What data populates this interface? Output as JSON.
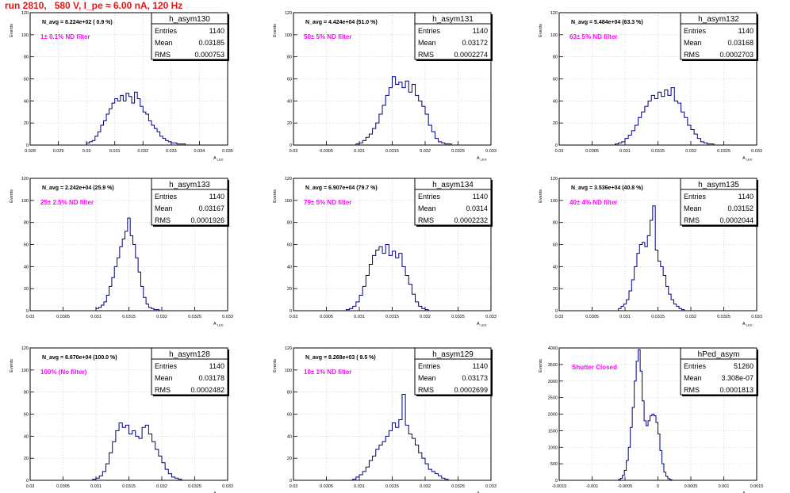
{
  "header": {
    "run_title": "run 2810,   580 V, I_pe ≈ 6.00 nA, 120 Hz"
  },
  "axis_labels": {
    "ylabel": "Events",
    "xlabel": "A",
    "xlabel_sub": "LED"
  },
  "colors": {
    "title_red": "#ee1111",
    "annotation_magenta": "#ff00ff",
    "histogram_line": "#000080",
    "frame": "#000000",
    "grid": "#bfbfbf"
  },
  "stats_labels": {
    "entries": "Entries",
    "mean": "Mean",
    "rms": "RMS"
  },
  "chart_data": [
    {
      "type": "histogram",
      "name": "h_asym130",
      "navg": "N_avg = 8.224e+02 ( 0.9 %)",
      "filter": "1± 0.1% ND filter",
      "stats": {
        "entries": "1140",
        "mean": "0.03185",
        "rms": "0.000753"
      },
      "xlim": [
        0.028,
        0.035
      ],
      "ylim": [
        0,
        120
      ],
      "grid": true,
      "xticks": [
        "0.028",
        "0.029",
        "0.03",
        "0.031",
        "0.032",
        "0.033",
        "0.034",
        "0.035"
      ],
      "yticks": [
        "0",
        "20",
        "40",
        "60",
        "80",
        "100",
        "120"
      ],
      "bins": {
        "start": 0.03,
        "width": 0.0001,
        "counts": [
          2,
          3,
          4,
          8,
          12,
          18,
          22,
          28,
          33,
          38,
          42,
          40,
          45,
          40,
          47,
          44,
          38,
          48,
          42,
          35,
          30,
          28,
          22,
          18,
          15,
          12,
          8,
          6,
          4,
          3,
          2,
          2,
          1,
          1,
          1
        ]
      }
    },
    {
      "type": "histogram",
      "name": "h_asym131",
      "navg": "N_avg = 4.424e+04 (51.0 %)",
      "filter": "50± 5% ND filter",
      "stats": {
        "entries": "1140",
        "mean": "0.03172",
        "rms": "0.0002274"
      },
      "xlim": [
        0.03,
        0.033
      ],
      "ylim": [
        0,
        120
      ],
      "grid": true,
      "xticks": [
        "0.03",
        "0.0305",
        "0.031",
        "0.0315",
        "0.032",
        "0.0325",
        "0.033"
      ],
      "yticks": [
        "0",
        "20",
        "40",
        "60",
        "80",
        "100",
        "120"
      ],
      "bins": {
        "start": 0.03095,
        "width": 5e-05,
        "counts": [
          1,
          2,
          4,
          7,
          10,
          15,
          20,
          28,
          36,
          45,
          52,
          62,
          55,
          57,
          52,
          58,
          48,
          55,
          45,
          40,
          35,
          28,
          18,
          12,
          6,
          3,
          2,
          1,
          1
        ]
      }
    },
    {
      "type": "histogram",
      "name": "h_asym132",
      "navg": "N_avg = 5.484e+04 (63.3 %)",
      "filter": "63± 5% ND filter",
      "stats": {
        "entries": "1140",
        "mean": "0.03168",
        "rms": "0.0002703"
      },
      "xlim": [
        0.03,
        0.033
      ],
      "ylim": [
        0,
        120
      ],
      "grid": true,
      "xticks": [
        "0.03",
        "0.0305",
        "0.031",
        "0.0315",
        "0.032",
        "0.0325",
        "0.033"
      ],
      "yticks": [
        "0",
        "20",
        "40",
        "60",
        "80",
        "100",
        "120"
      ],
      "bins": {
        "start": 0.03085,
        "width": 5e-05,
        "counts": [
          1,
          2,
          3,
          6,
          9,
          13,
          18,
          25,
          30,
          35,
          40,
          45,
          42,
          48,
          44,
          50,
          45,
          52,
          40,
          38,
          30,
          25,
          18,
          14,
          10,
          6,
          3,
          2,
          1,
          1
        ]
      }
    },
    {
      "type": "histogram",
      "name": "h_asym133",
      "navg": "N_avg = 2.242e+04 (25.9 %)",
      "filter": "25± 2.5% ND filter",
      "stats": {
        "entries": "1140",
        "mean": "0.03167",
        "rms": "0.0001926"
      },
      "xlim": [
        0.03,
        0.033
      ],
      "ylim": [
        0,
        120
      ],
      "grid": true,
      "xticks": [
        "0.03",
        "0.0305",
        "0.031",
        "0.0315",
        "0.032",
        "0.0325",
        "0.033"
      ],
      "yticks": [
        "0",
        "20",
        "40",
        "60",
        "80",
        "100",
        "120"
      ],
      "bins": {
        "start": 0.031,
        "width": 4e-05,
        "counts": [
          2,
          3,
          5,
          8,
          14,
          22,
          30,
          40,
          48,
          58,
          65,
          72,
          84,
          68,
          60,
          48,
          35,
          22,
          12,
          6,
          3,
          2,
          1,
          1
        ]
      }
    },
    {
      "type": "histogram",
      "name": "h_asym134",
      "navg": "N_avg = 6.907e+04 (79.7 %)",
      "filter": "79± 5% ND filter",
      "stats": {
        "entries": "1140",
        "mean": "0.0314",
        "rms": "0.0002232"
      },
      "xlim": [
        0.03,
        0.033
      ],
      "ylim": [
        0,
        120
      ],
      "grid": true,
      "xticks": [
        "0.03",
        "0.0305",
        "0.031",
        "0.0315",
        "0.032",
        "0.0325",
        "0.033"
      ],
      "yticks": [
        "0",
        "20",
        "40",
        "60",
        "80",
        "100",
        "120"
      ],
      "bins": {
        "start": 0.0308,
        "width": 5e-05,
        "counts": [
          1,
          2,
          4,
          8,
          14,
          22,
          32,
          42,
          50,
          55,
          58,
          52,
          60,
          50,
          54,
          48,
          52,
          40,
          32,
          24,
          15,
          8,
          4,
          2,
          1
        ]
      }
    },
    {
      "type": "histogram",
      "name": "h_asym135",
      "navg": "N_avg = 3.536e+04 (40.8 %)",
      "filter": "40± 4% ND filter",
      "stats": {
        "entries": "1140",
        "mean": "0.03152",
        "rms": "0.0002044"
      },
      "xlim": [
        0.03,
        0.033
      ],
      "ylim": [
        0,
        120
      ],
      "grid": true,
      "xticks": [
        "0.03",
        "0.0305",
        "0.031",
        "0.0315",
        "0.032",
        "0.0325",
        "0.033"
      ],
      "yticks": [
        "0",
        "20",
        "40",
        "60",
        "80",
        "100",
        "120"
      ],
      "bins": {
        "start": 0.0309,
        "width": 4e-05,
        "counts": [
          2,
          4,
          6,
          10,
          18,
          28,
          40,
          52,
          60,
          62,
          58,
          68,
          82,
          95,
          55,
          45,
          40,
          32,
          22,
          15,
          10,
          6,
          4,
          2,
          1
        ]
      }
    },
    {
      "type": "histogram",
      "name": "h_asym128",
      "navg": "N_avg = 8.670e+04 (100.0 %)",
      "filter": "100% (No filter)",
      "stats": {
        "entries": "1140",
        "mean": "0.03178",
        "rms": "0.0002482"
      },
      "xlim": [
        0.03,
        0.033
      ],
      "ylim": [
        0,
        120
      ],
      "grid": true,
      "xticks": [
        "0.03",
        "0.0305",
        "0.031",
        "0.0315",
        "0.032",
        "0.0325",
        "0.033"
      ],
      "yticks": [
        "0",
        "20",
        "40",
        "60",
        "80",
        "100",
        "120"
      ],
      "bins": {
        "start": 0.03095,
        "width": 5e-05,
        "counts": [
          1,
          2,
          4,
          8,
          15,
          25,
          35,
          45,
          52,
          48,
          50,
          42,
          45,
          40,
          38,
          48,
          50,
          42,
          35,
          28,
          22,
          16,
          10,
          6,
          3,
          2,
          1
        ]
      }
    },
    {
      "type": "histogram",
      "name": "h_asym129",
      "navg": "N_avg = 8.268e+03 ( 9.5 %)",
      "filter": "10± 1% ND filter",
      "stats": {
        "entries": "1140",
        "mean": "0.03173",
        "rms": "0.0002699"
      },
      "xlim": [
        0.03,
        0.033
      ],
      "ylim": [
        0,
        120
      ],
      "grid": true,
      "xticks": [
        "0.03",
        "0.0305",
        "0.031",
        "0.0315",
        "0.032",
        "0.0325",
        "0.033"
      ],
      "yticks": [
        "0",
        "20",
        "40",
        "60",
        "80",
        "100",
        "120"
      ],
      "bins": {
        "start": 0.0309,
        "width": 5e-05,
        "counts": [
          1,
          3,
          5,
          8,
          12,
          18,
          22,
          28,
          32,
          35,
          40,
          45,
          52,
          48,
          55,
          78,
          50,
          42,
          38,
          32,
          25,
          20,
          15,
          10,
          8,
          6,
          4,
          2,
          1
        ]
      }
    },
    {
      "type": "histogram",
      "name": "hPed_asym",
      "navg": "",
      "filter": "Shutter Closed",
      "stats": {
        "entries": "51260",
        "mean": "3.308e-07",
        "rms": "0.0001813"
      },
      "xlim": [
        -0.0015,
        0.0015
      ],
      "ylim": [
        0,
        4000
      ],
      "grid": true,
      "xticks": [
        "-0.0015",
        "-0.001",
        "-0.0005",
        "0",
        "0.0005",
        "0.001",
        "0.0015"
      ],
      "yticks": [
        "0",
        "500",
        "1000",
        "1500",
        "2000",
        "2500",
        "3000",
        "3500",
        "4000"
      ],
      "bins": {
        "start": -0.0006,
        "width": 3e-05,
        "counts": [
          20,
          60,
          150,
          300,
          600,
          1000,
          1600,
          2200,
          3000,
          3600,
          3950,
          3300,
          2400,
          1800,
          1650,
          1800,
          1950,
          2000,
          1950,
          1750,
          1400,
          900,
          500,
          250,
          120,
          50,
          20
        ]
      }
    }
  ]
}
